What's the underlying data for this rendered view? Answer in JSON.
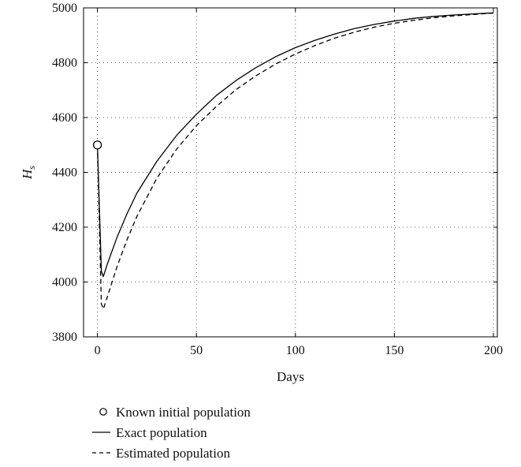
{
  "chart_data": {
    "type": "line",
    "xlabel": "Days",
    "ylabel_main": "H",
    "ylabel_sub": "s",
    "xlim": [
      -7,
      202
    ],
    "ylim": [
      3800,
      5000
    ],
    "xticks": [
      0,
      50,
      100,
      150,
      200
    ],
    "yticks": [
      3800,
      4000,
      4200,
      4400,
      4600,
      4800,
      5000
    ],
    "grid": true,
    "legend_position": "bottom",
    "series": [
      {
        "name": "Exact population",
        "style": "solid",
        "color": "#000000",
        "x": [
          0,
          2,
          3,
          5,
          10,
          15,
          20,
          30,
          40,
          50,
          60,
          70,
          80,
          90,
          100,
          110,
          120,
          130,
          140,
          150,
          160,
          170,
          180,
          190,
          200
        ],
        "y": [
          4500,
          4040,
          4020,
          4065,
          4165,
          4250,
          4325,
          4440,
          4535,
          4612,
          4680,
          4735,
          4782,
          4822,
          4855,
          4882,
          4905,
          4925,
          4940,
          4952,
          4962,
          4969,
          4974,
          4978,
          4982
        ]
      },
      {
        "name": "Estimated population",
        "style": "dashed",
        "color": "#000000",
        "x": [
          0,
          2,
          3,
          5,
          10,
          15,
          20,
          30,
          40,
          50,
          60,
          70,
          80,
          90,
          100,
          110,
          120,
          130,
          140,
          150,
          160,
          170,
          180,
          190,
          200
        ],
        "y": [
          4500,
          3920,
          3902,
          3945,
          4058,
          4155,
          4240,
          4378,
          4485,
          4570,
          4640,
          4702,
          4752,
          4795,
          4832,
          4863,
          4890,
          4912,
          4930,
          4944,
          4955,
          4964,
          4971,
          4976,
          4981
        ]
      },
      {
        "name": "Known initial population",
        "style": "marker",
        "marker": "circle",
        "color": "#000000",
        "x": [
          0
        ],
        "y": [
          4500
        ]
      }
    ]
  },
  "legend": {
    "items": [
      {
        "label": "Known initial population",
        "symbol": "circle"
      },
      {
        "label": "Exact population",
        "symbol": "solid"
      },
      {
        "label": "Estimated population",
        "symbol": "dashed"
      }
    ]
  }
}
